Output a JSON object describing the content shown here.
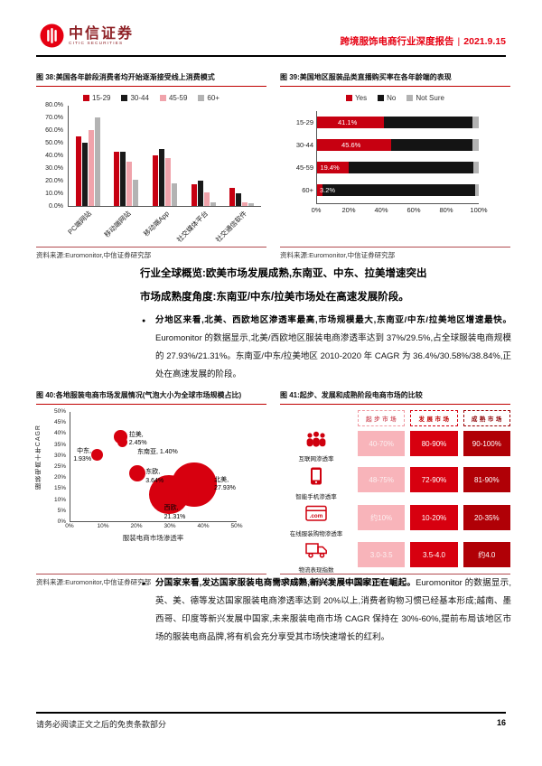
{
  "header": {
    "brand_cn": "中信证券",
    "brand_en": "CITIC SECURITIES",
    "report_title": "跨境服饰电商行业深度报告",
    "divider": "|",
    "report_date": "2021.9.15"
  },
  "figures": {
    "fig38": {
      "title": "图 38:美国各年龄段消费者均开始逐渐接受线上消费模式",
      "source": "资料来源:Euromonitor,中信证券研究部"
    },
    "fig39": {
      "title": "图 39:美国地区服装品类直播购买率在各年龄端的表现",
      "source": "资料来源:Euromonitor,中信证券研究部"
    },
    "fig40": {
      "title": "图 40:各地服装电商市场发展情况(气泡大小为全球市场规模占比)",
      "source": "资料来源:Euromonitor,中信证券研究部"
    },
    "fig41": {
      "title": "图 41:起步、发展和成熟阶段电商市场的比较",
      "source": "资料来源:德勤咨询,中信证券研究部"
    }
  },
  "section": {
    "heading_line1": "行业全球概览:欧美市场发展成熟,东南亚、中东、拉美增速突出",
    "heading_line2": "市场成熟度角度:东南亚/中东/拉美市场处在高速发展阶段。",
    "bullet1_bold": "分地区来看,北美、西欧地区渗透率最高,市场规模最大,东南亚/中东/拉美地区增速最快。",
    "bullet1_rest": "Euromonitor 的数据显示,北美/西欧地区服装电商渗透率达到 37%/29.5%,占全球服装电商规模的 27.93%/21.31%。东南亚/中东/拉美地区 2010-2020 年 CAGR 为 36.4%/30.58%/38.84%,正处在高速发展的阶段。",
    "bullet2_bold": "分国家来看,发达国家服装电商需求成熟,新兴发展中国家正在崛起。",
    "bullet2_rest": "Euromonitor 的数据显示,英、美、德等发达国家服装电商渗透率达到 20%以上,消费者购物习惯已经基本形成;越南、墨西哥、印度等新兴发展中国家,未来服装电商市场 CAGR 保持在 30%-60%,提前布局该地区市场的服装电商品牌,将有机会充分享受其市场快速增长的红利。"
  },
  "footer": {
    "disclaimer": "请务必阅读正文之后的免责条款部分",
    "page_number": "16"
  },
  "colors": {
    "brand_red": "#e60012",
    "series_red": "#c70011",
    "series_black": "#1a1a1a",
    "series_pink": "#f0a3ab",
    "series_gray": "#b3b3b3",
    "bubble_red": "#d7000f"
  },
  "chart_data": [
    {
      "id": "fig38",
      "type": "bar",
      "title": "美国各年龄段消费者均开始逐渐接受线上消费模式",
      "categories": [
        "PC端网站",
        "移动端网站",
        "移动端App",
        "社交媒体平台",
        "社交通信软件"
      ],
      "series": [
        {
          "name": "15-29",
          "color": "#c70011",
          "values": [
            55,
            43,
            40,
            17,
            14
          ]
        },
        {
          "name": "30-44",
          "color": "#1a1a1a",
          "values": [
            50,
            43,
            45,
            20,
            10
          ]
        },
        {
          "name": "45-59",
          "color": "#f0a3ab",
          "values": [
            60,
            35,
            38,
            11,
            3
          ]
        },
        {
          "name": "60+",
          "color": "#b3b3b3",
          "values": [
            70,
            21,
            18,
            3,
            2
          ]
        }
      ],
      "ylim": [
        0,
        80
      ],
      "ytick_step": 10,
      "ytick_format": "percent_one_decimal",
      "legend_position": "top",
      "grid": false
    },
    {
      "id": "fig39",
      "type": "stacked-bar-horizontal",
      "title": "美国地区服装品类直播购买率在各年龄端的表现",
      "categories": [
        "15-29",
        "30-44",
        "45-59",
        "60+"
      ],
      "series": [
        {
          "name": "Yes",
          "color": "#c70011",
          "values": [
            41.1,
            45.6,
            19.4,
            3.2
          ],
          "labels": [
            "41.1%",
            "45.6%",
            "19.4%",
            "3.2%"
          ]
        },
        {
          "name": "No",
          "color": "#141414",
          "values": [
            54.9,
            50.4,
            77.1,
            94.8
          ]
        },
        {
          "name": "Not Sure",
          "color": "#b3b3b3",
          "values": [
            4.0,
            4.0,
            3.5,
            2.0
          ]
        }
      ],
      "xlim": [
        0,
        100
      ],
      "xticks": [
        "0%",
        "20%",
        "40%",
        "60%",
        "80%",
        "100%"
      ],
      "legend_position": "top",
      "grid": false
    },
    {
      "id": "fig40",
      "type": "scatter",
      "title": "各地服装电商市场发展情况(气泡大小为全球市场规模占比)",
      "xlabel": "服装电商市场渗透率",
      "ylabel": "服装电商十年CAGR",
      "xlim": [
        0,
        50
      ],
      "ylim": [
        0,
        50
      ],
      "xtick_step": 10,
      "ytick_step": 5,
      "points": [
        {
          "name": "北美",
          "x": 37,
          "y": 17,
          "share": 27.93,
          "label": "北美,\n27.93%",
          "label_x": 43,
          "label_y": 21,
          "label_align": "left"
        },
        {
          "name": "西欧",
          "x": 29.5,
          "y": 12.5,
          "share": 21.31,
          "label": "西欧,\n21.31%",
          "label_x": 28,
          "label_y": 8,
          "label_align": "left"
        },
        {
          "name": "东欧",
          "x": 20,
          "y": 22.3,
          "share": 3.64,
          "label": "东欧,\n3.64%",
          "label_x": 22.5,
          "label_y": 24.5,
          "label_align": "left"
        },
        {
          "name": "拉美",
          "x": 15,
          "y": 38.8,
          "share": 2.45,
          "label": "拉美,\n2.45%",
          "label_x": 17.5,
          "label_y": 41.5,
          "label_align": "left"
        },
        {
          "name": "东南亚",
          "x": 15.5,
          "y": 36.4,
          "share": 1.4,
          "label": "东南亚, 1.40%",
          "label_x": 20,
          "label_y": 33.5,
          "label_align": "left"
        },
        {
          "name": "中东",
          "x": 8,
          "y": 30.6,
          "share": 1.93,
          "label": "中东,\n1.93%",
          "label_x": 6.5,
          "label_y": 34,
          "label_align": "right"
        }
      ]
    },
    {
      "id": "fig41",
      "type": "table",
      "title": "起步、发展和成熟阶段电商市场的比较",
      "columns": [
        "起步市场",
        "发展市场",
        "成熟市场"
      ],
      "rows": [
        {
          "label": "互联网渗透率",
          "icon": "people-icon",
          "values": [
            "40-70%",
            "80-90%",
            "90-100%"
          ]
        },
        {
          "label": "智能手机渗透率",
          "icon": "smartphone-icon",
          "values": [
            "48-75%",
            "72-90%",
            "81-90%"
          ]
        },
        {
          "label": "在线服装购物渗透率",
          "icon": "online-shop-icon",
          "values": [
            "约10%",
            "10-20%",
            "20-35%"
          ]
        },
        {
          "label": "物流表现指数",
          "icon": "truck-icon",
          "values": [
            "3.0-3.5",
            "3.5-4.0",
            "约4.0"
          ]
        }
      ]
    }
  ]
}
